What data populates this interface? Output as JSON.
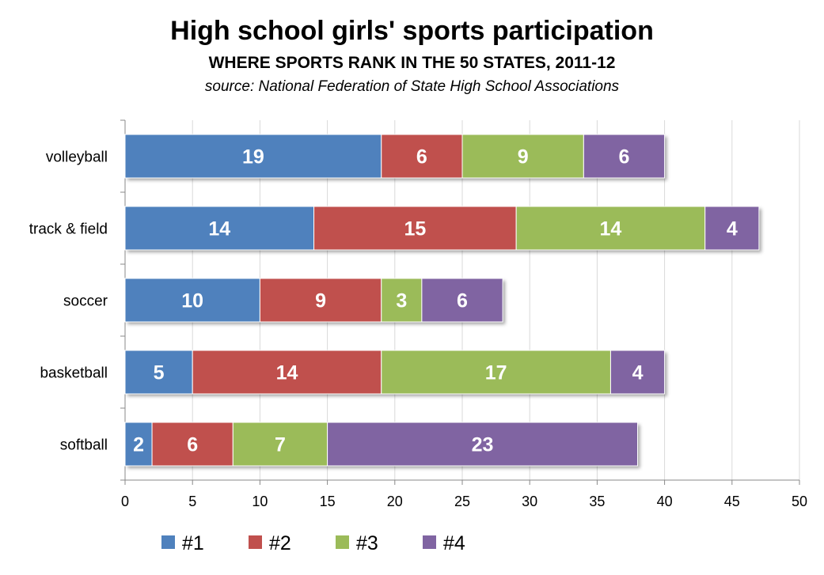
{
  "chart_data": {
    "type": "bar",
    "orientation": "horizontal",
    "stacked": true,
    "title": "High school girls' sports participation",
    "subtitle": "WHERE SPORTS RANK IN THE 50 STATES, 2011-12",
    "source": "source: National Federation of State High School Associations",
    "categories": [
      "volleyball",
      "track & field",
      "soccer",
      "basketball",
      "softball"
    ],
    "series": [
      {
        "name": "#1",
        "color": "#4F81BD",
        "values": [
          19,
          14,
          10,
          5,
          2
        ]
      },
      {
        "name": "#2",
        "color": "#C0504D",
        "values": [
          6,
          15,
          9,
          14,
          6
        ]
      },
      {
        "name": "#3",
        "color": "#9BBB59",
        "values": [
          9,
          14,
          3,
          17,
          7
        ]
      },
      {
        "name": "#4",
        "color": "#8064A2",
        "values": [
          6,
          4,
          6,
          4,
          23
        ]
      }
    ],
    "xlim": [
      0,
      50
    ],
    "xticks": [
      0,
      5,
      10,
      15,
      20,
      25,
      30,
      35,
      40,
      45,
      50
    ],
    "grid": "vertical",
    "legend": "bottom",
    "data_labels": true
  }
}
